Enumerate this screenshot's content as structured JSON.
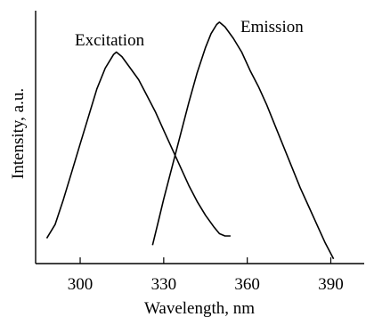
{
  "chart_data": {
    "type": "line",
    "xlabel": "Wavelength, nm",
    "ylabel": "Intensity, a.u.",
    "xlim": [
      284,
      402
    ],
    "ylim": [
      0,
      1.1
    ],
    "x_ticks": [
      300,
      330,
      360,
      390
    ],
    "grid": false,
    "series": [
      {
        "name": "Excitation",
        "x": [
          288,
          291,
          294,
          297,
          300,
          303,
          306,
          309,
          312,
          313,
          315,
          318,
          321,
          324,
          327,
          330,
          333,
          336,
          339,
          342,
          345,
          348,
          350,
          352,
          354
        ],
        "y": [
          0.11,
          0.17,
          0.28,
          0.4,
          0.52,
          0.64,
          0.76,
          0.85,
          0.91,
          0.92,
          0.9,
          0.85,
          0.8,
          0.73,
          0.66,
          0.58,
          0.5,
          0.42,
          0.34,
          0.27,
          0.21,
          0.16,
          0.13,
          0.12,
          0.12
        ]
      },
      {
        "name": "Emission",
        "x": [
          326,
          328,
          330,
          333,
          336,
          339,
          342,
          345,
          347,
          349,
          350,
          352,
          355,
          358,
          361,
          364,
          367,
          370,
          373,
          376,
          379,
          382,
          385,
          388,
          391
        ],
        "y": [
          0.08,
          0.18,
          0.28,
          0.42,
          0.56,
          0.7,
          0.83,
          0.94,
          1.0,
          1.04,
          1.05,
          1.03,
          0.98,
          0.92,
          0.84,
          0.77,
          0.69,
          0.6,
          0.51,
          0.42,
          0.33,
          0.25,
          0.17,
          0.09,
          0.02
        ]
      }
    ]
  }
}
